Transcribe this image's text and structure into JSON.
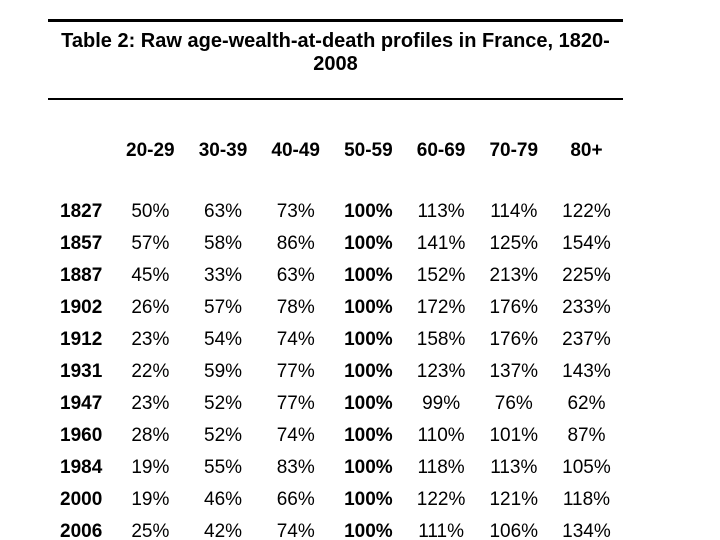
{
  "title": {
    "full": "Table 2: Raw age-wealth-at-death profiles in France, 1820-2008",
    "line1": "Table 2: Raw age-wealth-at-death profiles in France, 1820-",
    "line2": "2008"
  },
  "table": {
    "columns": [
      "20-29",
      "30-39",
      "40-49",
      "50-59",
      "60-69",
      "70-79",
      "80+"
    ],
    "bold_column": "50-59",
    "rows": [
      {
        "year": "1827",
        "values": [
          "50%",
          "63%",
          "73%",
          "100%",
          "113%",
          "114%",
          "122%"
        ]
      },
      {
        "year": "1857",
        "values": [
          "57%",
          "58%",
          "86%",
          "100%",
          "141%",
          "125%",
          "154%"
        ]
      },
      {
        "year": "1887",
        "values": [
          "45%",
          "33%",
          "63%",
          "100%",
          "152%",
          "213%",
          "225%"
        ]
      },
      {
        "year": "1902",
        "values": [
          "26%",
          "57%",
          "78%",
          "100%",
          "172%",
          "176%",
          "233%"
        ]
      },
      {
        "year": "1912",
        "values": [
          "23%",
          "54%",
          "74%",
          "100%",
          "158%",
          "176%",
          "237%"
        ]
      },
      {
        "year": "1931",
        "values": [
          "22%",
          "59%",
          "77%",
          "100%",
          "123%",
          "137%",
          "143%"
        ]
      },
      {
        "year": "1947",
        "values": [
          "23%",
          "52%",
          "77%",
          "100%",
          "99%",
          "76%",
          "62%"
        ]
      },
      {
        "year": "1960",
        "values": [
          "28%",
          "52%",
          "74%",
          "100%",
          "110%",
          "101%",
          "87%"
        ]
      },
      {
        "year": "1984",
        "values": [
          "19%",
          "55%",
          "83%",
          "100%",
          "118%",
          "113%",
          "105%"
        ]
      },
      {
        "year": "2000",
        "values": [
          "19%",
          "46%",
          "66%",
          "100%",
          "122%",
          "121%",
          "118%"
        ]
      },
      {
        "year": "2006",
        "values": [
          "25%",
          "42%",
          "74%",
          "100%",
          "111%",
          "106%",
          "134%"
        ]
      }
    ]
  },
  "colors": {
    "background": "#ffffff",
    "text": "#000000",
    "rule": "#000000"
  }
}
